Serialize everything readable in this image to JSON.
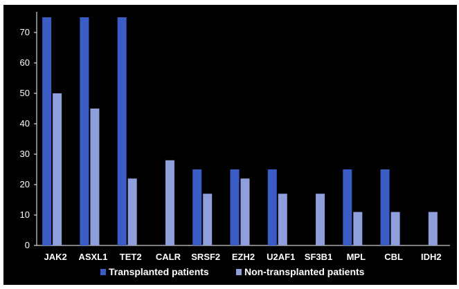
{
  "chart_data": {
    "type": "bar",
    "title": "",
    "xlabel": "",
    "ylabel": "",
    "categories": [
      "JAK2",
      "ASXL1",
      "TET2",
      "CALR",
      "SRSF2",
      "EZH2",
      "U2AF1",
      "SF3B1",
      "MPL",
      "CBL",
      "IDH2"
    ],
    "series": [
      {
        "name": "Transplanted patients",
        "color": "#3a5cc4",
        "values": [
          75,
          75,
          75,
          0,
          25,
          25,
          25,
          0,
          25,
          25,
          0
        ]
      },
      {
        "name": "Non-transplanted patients",
        "color": "#8f9fdb",
        "values": [
          50,
          45,
          22,
          28,
          17,
          22,
          17,
          17,
          11,
          11,
          11
        ]
      }
    ],
    "ylim": [
      0,
      75
    ],
    "yticks": [
      0,
      10,
      20,
      30,
      40,
      50,
      60,
      70
    ],
    "grid": false,
    "legend_position": "bottom",
    "background": "#000000",
    "text_color": "#ffffff",
    "axis_color": "#ffffff"
  }
}
